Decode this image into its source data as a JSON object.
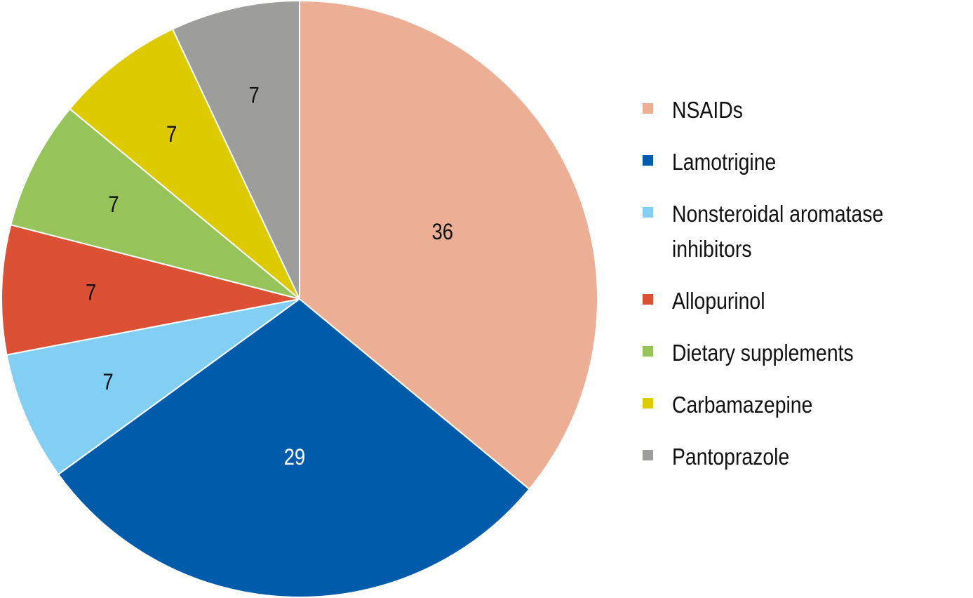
{
  "chart_data": {
    "type": "pie",
    "title": "",
    "start": "top",
    "direction": "clockwise",
    "slices": [
      {
        "label": "NSAIDs",
        "value": 36,
        "color": "#EDAE96",
        "label_color": "#111111"
      },
      {
        "label": "Lamotrigine",
        "value": 29,
        "color": "#005BAA",
        "label_color": "#FFFFFF"
      },
      {
        "label": "Nonsteroidal aromatase inhibitors",
        "value": 7,
        "color": "#82CFF3",
        "label_color": "#111111"
      },
      {
        "label": "Allopurinol",
        "value": 7,
        "color": "#DC5035",
        "label_color": "#111111"
      },
      {
        "label": "Dietary supplements",
        "value": 7,
        "color": "#96C45A",
        "label_color": "#111111"
      },
      {
        "label": "Carbamazepine",
        "value": 7,
        "color": "#DDCA00",
        "label_color": "#111111"
      },
      {
        "label": "Pantoprazole",
        "value": 7,
        "color": "#9D9D9B",
        "label_color": "#111111"
      }
    ],
    "legend_position": "right"
  }
}
